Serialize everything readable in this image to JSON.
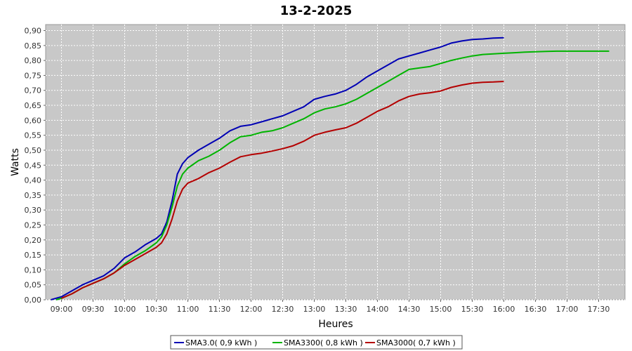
{
  "chart_data": {
    "type": "line",
    "title": "13-2-2025",
    "xlabel": "Heures",
    "ylabel": "Watts",
    "x_range": [
      "08:45",
      "17:55"
    ],
    "ylim": [
      0,
      0.92
    ],
    "y_ticks": [
      "0,00",
      "0,05",
      "0,10",
      "0,15",
      "0,20",
      "0,25",
      "0,30",
      "0,35",
      "0,40",
      "0,45",
      "0,50",
      "0,55",
      "0,60",
      "0,65",
      "0,70",
      "0,75",
      "0,80",
      "0,85",
      "0,90"
    ],
    "y_tick_values": [
      0,
      0.05,
      0.1,
      0.15,
      0.2,
      0.25,
      0.3,
      0.35,
      0.4,
      0.45,
      0.5,
      0.55,
      0.6,
      0.65,
      0.7,
      0.75,
      0.8,
      0.85,
      0.9
    ],
    "x_ticks": [
      "09:00",
      "09:30",
      "10:00",
      "10:30",
      "11:00",
      "11:30",
      "12:00",
      "12:30",
      "13:00",
      "13:30",
      "14:00",
      "14:30",
      "15:00",
      "15:30",
      "16:00",
      "16:30",
      "17:00",
      "17:30"
    ],
    "grid": true,
    "legend_position": "bottom",
    "plot_background": "#c8c8c8",
    "series": [
      {
        "name": "SMA3.0( 0,9 kWh )",
        "color": "#0000b4",
        "x": [
          "08:50",
          "09:00",
          "09:10",
          "09:20",
          "09:30",
          "09:40",
          "09:50",
          "10:00",
          "10:10",
          "10:20",
          "10:30",
          "10:35",
          "10:40",
          "10:45",
          "10:50",
          "10:55",
          "11:00",
          "11:10",
          "11:20",
          "11:30",
          "11:40",
          "11:50",
          "12:00",
          "12:10",
          "12:20",
          "12:30",
          "12:40",
          "12:50",
          "13:00",
          "13:10",
          "13:20",
          "13:30",
          "13:40",
          "13:50",
          "14:00",
          "14:10",
          "14:20",
          "14:30",
          "14:40",
          "14:50",
          "15:00",
          "15:10",
          "15:20",
          "15:30",
          "15:40",
          "15:50",
          "16:00"
        ],
        "values": [
          0.0,
          0.01,
          0.03,
          0.05,
          0.065,
          0.08,
          0.105,
          0.14,
          0.16,
          0.185,
          0.205,
          0.22,
          0.26,
          0.33,
          0.42,
          0.455,
          0.475,
          0.5,
          0.52,
          0.54,
          0.565,
          0.58,
          0.585,
          0.595,
          0.605,
          0.615,
          0.63,
          0.645,
          0.67,
          0.68,
          0.688,
          0.7,
          0.72,
          0.745,
          0.765,
          0.785,
          0.805,
          0.815,
          0.825,
          0.835,
          0.845,
          0.858,
          0.865,
          0.87,
          0.872,
          0.875,
          0.876
        ]
      },
      {
        "name": "SMA3300( 0,8 kWh )",
        "color": "#00b400",
        "x": [
          "08:55",
          "09:00",
          "09:10",
          "09:20",
          "09:30",
          "09:40",
          "09:50",
          "10:00",
          "10:10",
          "10:20",
          "10:30",
          "10:35",
          "10:40",
          "10:45",
          "10:50",
          "10:55",
          "11:00",
          "11:10",
          "11:20",
          "11:30",
          "11:40",
          "11:50",
          "12:00",
          "12:10",
          "12:20",
          "12:30",
          "12:40",
          "12:50",
          "13:00",
          "13:10",
          "13:20",
          "13:30",
          "13:40",
          "13:50",
          "14:00",
          "14:10",
          "14:20",
          "14:30",
          "14:40",
          "14:50",
          "15:00",
          "15:10",
          "15:20",
          "15:30",
          "15:40",
          "15:50",
          "16:00",
          "16:10",
          "16:20",
          "16:30",
          "16:40",
          "16:50",
          "17:00",
          "17:10",
          "17:20",
          "17:30",
          "17:40"
        ],
        "values": [
          0.0,
          0.005,
          0.02,
          0.04,
          0.055,
          0.07,
          0.09,
          0.12,
          0.145,
          0.165,
          0.19,
          0.21,
          0.25,
          0.31,
          0.38,
          0.42,
          0.44,
          0.465,
          0.48,
          0.5,
          0.525,
          0.545,
          0.55,
          0.56,
          0.565,
          0.575,
          0.59,
          0.605,
          0.625,
          0.638,
          0.645,
          0.655,
          0.67,
          0.69,
          0.71,
          0.73,
          0.75,
          0.77,
          0.775,
          0.78,
          0.79,
          0.8,
          0.808,
          0.815,
          0.82,
          0.822,
          0.824,
          0.826,
          0.828,
          0.829,
          0.83,
          0.831,
          0.831,
          0.831,
          0.831,
          0.831,
          0.831
        ]
      },
      {
        "name": "SMA3000( 0,7 kWh )",
        "color": "#b40000",
        "x": [
          "09:00",
          "09:10",
          "09:20",
          "09:30",
          "09:40",
          "09:50",
          "10:00",
          "10:10",
          "10:20",
          "10:30",
          "10:35",
          "10:40",
          "10:45",
          "10:50",
          "10:55",
          "11:00",
          "11:10",
          "11:20",
          "11:30",
          "11:40",
          "11:50",
          "12:00",
          "12:10",
          "12:20",
          "12:30",
          "12:40",
          "12:50",
          "13:00",
          "13:10",
          "13:20",
          "13:30",
          "13:40",
          "13:50",
          "14:00",
          "14:10",
          "14:20",
          "14:30",
          "14:40",
          "14:50",
          "15:00",
          "15:10",
          "15:20",
          "15:30",
          "15:40",
          "15:50",
          "16:00"
        ],
        "values": [
          0.005,
          0.02,
          0.04,
          0.055,
          0.07,
          0.09,
          0.115,
          0.135,
          0.155,
          0.175,
          0.19,
          0.22,
          0.27,
          0.33,
          0.37,
          0.39,
          0.405,
          0.425,
          0.44,
          0.46,
          0.478,
          0.485,
          0.49,
          0.497,
          0.505,
          0.515,
          0.53,
          0.55,
          0.56,
          0.568,
          0.575,
          0.59,
          0.61,
          0.63,
          0.645,
          0.665,
          0.68,
          0.688,
          0.692,
          0.698,
          0.71,
          0.718,
          0.724,
          0.727,
          0.728,
          0.73
        ]
      }
    ]
  }
}
